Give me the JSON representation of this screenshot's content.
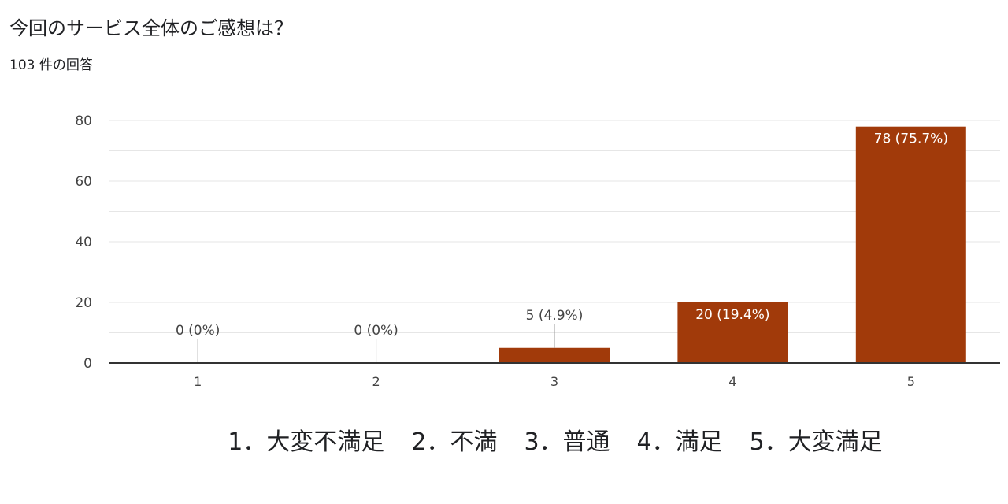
{
  "page": {
    "question_title": "今回のサービス全体のご感想は？",
    "response_count": "103 件の回答"
  },
  "colors": {
    "bar": "#A13A0A",
    "grid": "#e6e6e6",
    "axis": "#333333",
    "text": "#444444"
  },
  "chart_data": {
    "type": "bar",
    "categories": [
      "1",
      "2",
      "3",
      "4",
      "5"
    ],
    "values": [
      0,
      0,
      5,
      20,
      78
    ],
    "data_labels": [
      "0 (0%)",
      "0 (0%)",
      "5 (4.9%)",
      "20 (19.4%)",
      "78 (75.7%)"
    ],
    "yticks": [
      "0",
      "20",
      "40",
      "60",
      "80"
    ],
    "ylim": [
      0,
      80
    ],
    "xlabel": "",
    "ylabel": "",
    "grid": true
  },
  "legend_items": [
    "1．大変不満足",
    "2．不満",
    "3．普通",
    "4．満足",
    "5．大変満足"
  ]
}
